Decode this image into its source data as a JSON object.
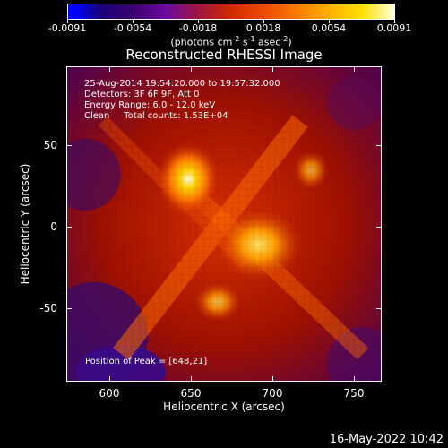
{
  "colorbar": {
    "ticks": [
      "-0.0091",
      "-0.0054",
      "-0.0018",
      "0.0018",
      "0.0054",
      "0.0091"
    ],
    "units_prefix": "(photons cm",
    "units_exp1": "-2",
    "units_mid1": " s",
    "units_exp2": "-1",
    "units_mid2": " asec",
    "units_exp3": "-2",
    "units_suffix": ")"
  },
  "title": "Reconstructed RHESSI Image",
  "info": {
    "line1": "25-Aug-2014 19:54:20.000 to 19:57:32.000",
    "line2": "Detectors: 3F 6F 9F, Att 0",
    "line3": "Energy Range: 6.0 - 12.0 keV",
    "line4": "Clean     Total counts: 1.53E+04"
  },
  "peak": "Position of Peak = [648,21]",
  "axes": {
    "xlabel": "Heliocentric X (arcsec)",
    "ylabel": "Heliocentric Y (arcsec)",
    "xticks": [
      "600",
      "650",
      "700",
      "750"
    ],
    "yticks": [
      "50",
      "0",
      "-50"
    ]
  },
  "timestamp": "16-May-2022 10:42"
}
